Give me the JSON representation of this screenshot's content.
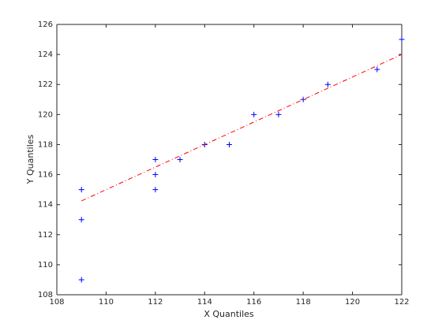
{
  "chart_data": {
    "type": "scatter",
    "xlabel": "X Quantiles",
    "ylabel": "Y Quantiles",
    "xlim": [
      108,
      122
    ],
    "ylim": [
      108,
      126
    ],
    "xticks": [
      108,
      110,
      112,
      114,
      116,
      118,
      120,
      122
    ],
    "yticks": [
      108,
      110,
      112,
      114,
      116,
      118,
      120,
      122,
      124,
      126
    ],
    "box": true,
    "series": [
      {
        "color": "#0000ff",
        "marker": "plus",
        "x": [
          109,
          109,
          109,
          112,
          112,
          112,
          113,
          114,
          115,
          116,
          117,
          118,
          119,
          121,
          122
        ],
        "values": [
          109,
          113,
          115,
          115,
          116,
          117,
          117,
          118,
          118,
          120,
          120,
          121,
          122,
          123,
          125
        ]
      },
      {
        "color": "#ff0000",
        "line_style": "dashdot",
        "x": [
          109,
          122
        ],
        "values": [
          114.25,
          124.0
        ]
      }
    ]
  }
}
